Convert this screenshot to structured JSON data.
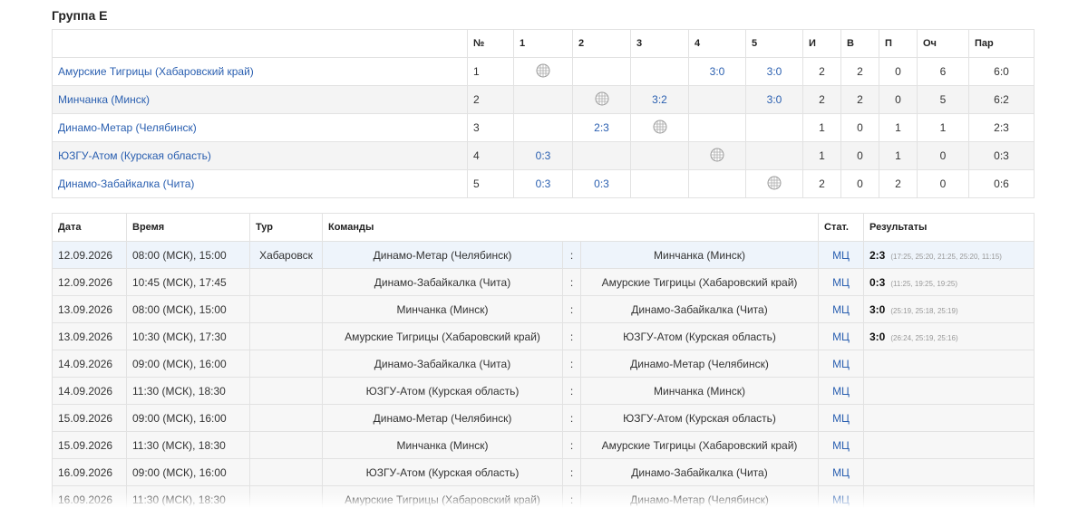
{
  "title": "Группа Е",
  "standings": {
    "header": [
      "№",
      "1",
      "2",
      "3",
      "4",
      "5",
      "И",
      "В",
      "П",
      "Оч",
      "Пар"
    ],
    "rows": [
      {
        "team": "Амурские Тигрицы (Хабаровский край)",
        "num": 1,
        "cells": [
          null,
          null,
          null,
          "3:0",
          "3:0"
        ],
        "played": 2,
        "won": 2,
        "lost": 0,
        "points": 6,
        "sets": "6:0"
      },
      {
        "team": "Минчанка (Минск)",
        "num": 2,
        "cells": [
          null,
          null,
          "3:2",
          null,
          "3:0"
        ],
        "played": 2,
        "won": 2,
        "lost": 0,
        "points": 5,
        "sets": "6:2"
      },
      {
        "team": "Динамо-Метар (Челябинск)",
        "num": 3,
        "cells": [
          null,
          "2:3",
          null,
          null,
          null
        ],
        "played": 1,
        "won": 0,
        "lost": 1,
        "points": 1,
        "sets": "2:3"
      },
      {
        "team": "ЮЗГУ-Атом (Курская область)",
        "num": 4,
        "cells": [
          "0:3",
          null,
          null,
          null,
          null
        ],
        "played": 1,
        "won": 0,
        "lost": 1,
        "points": 0,
        "sets": "0:3"
      },
      {
        "team": "Динамо-Забайкалка (Чита)",
        "num": 5,
        "cells": [
          "0:3",
          "0:3",
          null,
          null,
          null
        ],
        "played": 2,
        "won": 0,
        "lost": 2,
        "points": 0,
        "sets": "0:6"
      }
    ]
  },
  "matches": {
    "header": [
      "Дата",
      "Время",
      "Тур",
      "Команды",
      "Стат.",
      "Результаты"
    ],
    "separator": ":",
    "rows": [
      {
        "date": "12.09.2026",
        "time": "08:00 (МСК), 15:00",
        "tour": "Хабаровск",
        "home": "Динамо-Метар (Челябинск)",
        "away": "Минчанка (Минск)",
        "stat": "МЦ",
        "score": "2:3",
        "set_scores": "(17:25, 25:20, 21:25, 25:20, 11:15)"
      },
      {
        "date": "12.09.2026",
        "time": "10:45 (МСК), 17:45",
        "tour": null,
        "home": "Динамо-Забайкалка (Чита)",
        "away": "Амурские Тигрицы (Хабаровский край)",
        "stat": "МЦ",
        "score": "0:3",
        "set_scores": "(11:25, 19:25, 19:25)"
      },
      {
        "date": "13.09.2026",
        "time": "08:00 (МСК), 15:00",
        "tour": null,
        "home": "Минчанка (Минск)",
        "away": "Динамо-Забайкалка (Чита)",
        "stat": "МЦ",
        "score": "3:0",
        "set_scores": "(25:19, 25:18, 25:19)"
      },
      {
        "date": "13.09.2026",
        "time": "10:30 (МСК), 17:30",
        "tour": null,
        "home": "Амурские Тигрицы (Хабаровский край)",
        "away": "ЮЗГУ-Атом (Курская область)",
        "stat": "МЦ",
        "score": "3:0",
        "set_scores": "(26:24, 25:19, 25:16)"
      },
      {
        "date": "14.09.2026",
        "time": "09:00 (МСК), 16:00",
        "tour": null,
        "home": "Динамо-Забайкалка (Чита)",
        "away": "Динамо-Метар (Челябинск)",
        "stat": "МЦ",
        "score": null,
        "set_scores": null
      },
      {
        "date": "14.09.2026",
        "time": "11:30 (МСК), 18:30",
        "tour": null,
        "home": "ЮЗГУ-Атом (Курская область)",
        "away": "Минчанка (Минск)",
        "stat": "МЦ",
        "score": null,
        "set_scores": null
      },
      {
        "date": "15.09.2026",
        "time": "09:00 (МСК), 16:00",
        "tour": null,
        "home": "Динамо-Метар (Челябинск)",
        "away": "ЮЗГУ-Атом (Курская область)",
        "stat": "МЦ",
        "score": null,
        "set_scores": null
      },
      {
        "date": "15.09.2026",
        "time": "11:30 (МСК), 18:30",
        "tour": null,
        "home": "Минчанка (Минск)",
        "away": "Амурские Тигрицы (Хабаровский край)",
        "stat": "МЦ",
        "score": null,
        "set_scores": null
      },
      {
        "date": "16.09.2026",
        "time": "09:00 (МСК), 16:00",
        "tour": null,
        "home": "ЮЗГУ-Атом (Курская область)",
        "away": "Динамо-Забайкалка (Чита)",
        "stat": "МЦ",
        "score": null,
        "set_scores": null
      },
      {
        "date": "16.09.2026",
        "time": "11:30 (МСК), 18:30",
        "tour": null,
        "home": "Амурские Тигрицы (Хабаровский край)",
        "away": "Динамо-Метар (Челябинск)",
        "stat": "МЦ",
        "score": null,
        "set_scores": null
      }
    ]
  }
}
